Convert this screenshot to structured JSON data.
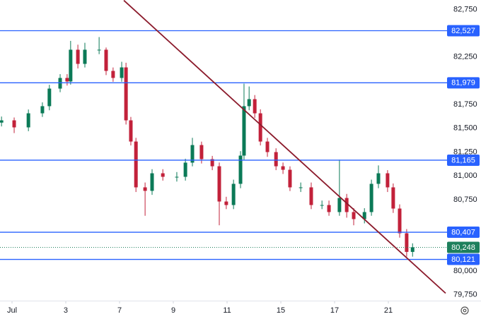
{
  "chart_data": {
    "type": "candlestick",
    "x": [
      -0.39,
      0.08,
      0.61,
      1.13,
      1.39,
      1.79,
      2.05,
      2.18,
      2.45,
      2.71,
      3.24,
      3.5,
      3.76,
      4.08,
      4.24,
      4.42,
      4.61,
      4.95,
      5.21,
      5.61,
      6.13,
      6.45,
      6.71,
      7.05,
      7.45,
      7.71,
      7.97,
      8.24,
      8.5,
      8.63,
      8.82,
      9.03,
      9.24,
      9.5,
      9.82,
      10.08,
      10.34,
      10.74,
      11.13,
      11.53,
      11.79,
      12.18,
      12.45,
      12.71,
      13.11,
      13.37,
      13.63,
      13.97,
      14.18,
      14.42,
      14.68,
      14.9
    ],
    "open": [
      81560,
      81584,
      81510,
      81658,
      81733,
      81918,
      82030,
      81993,
      82327,
      82178,
      82327,
      82327,
      82104,
      82030,
      82141,
      81584,
      81361,
      80879,
      80842,
      81027,
      80990,
      80990,
      81139,
      81324,
      81176,
      81101,
      80730,
      80693,
      80916,
      81213,
      81733,
      81807,
      81658,
      81361,
      81250,
      81101,
      81064,
      80879,
      80879,
      80693,
      80693,
      80619,
      80767,
      80619,
      80545,
      80619,
      80916,
      81027,
      80879,
      80656,
      80396,
      80200
    ],
    "high": [
      81624,
      81614,
      81698,
      81773,
      81958,
      82070,
      82070,
      82420,
      82380,
      82400,
      82460,
      82350,
      82140,
      82200,
      82190,
      81620,
      81400,
      80930,
      81070,
      81070,
      81040,
      81180,
      81400,
      81360,
      81210,
      81140,
      80780,
      80960,
      81260,
      81970,
      81940,
      81850,
      81700,
      81400,
      81290,
      81140,
      81100,
      80930,
      80930,
      80740,
      80740,
      81170,
      80810,
      80660,
      80660,
      80960,
      81110,
      81060,
      80920,
      80700,
      80440,
      80290
    ],
    "low": [
      81520,
      81450,
      81470,
      81620,
      81690,
      81880,
      81950,
      81960,
      82130,
      82140,
      82280,
      82060,
      81990,
      81990,
      81540,
      81320,
      80830,
      80580,
      80800,
      80950,
      80940,
      80950,
      81100,
      81130,
      81060,
      80480,
      80650,
      80650,
      80870,
      81170,
      81690,
      81610,
      81320,
      81200,
      81060,
      81020,
      80840,
      80830,
      80650,
      80650,
      80580,
      80580,
      80560,
      80480,
      80500,
      80580,
      80870,
      80830,
      80610,
      80350,
      80150,
      80150
    ],
    "close": [
      81584,
      81510,
      81658,
      81733,
      81918,
      82030,
      81993,
      82327,
      82178,
      82327,
      82327,
      82104,
      82030,
      82141,
      81584,
      81361,
      80879,
      80842,
      81027,
      80990,
      80990,
      81139,
      81324,
      81176,
      81101,
      80730,
      80693,
      80916,
      81213,
      81733,
      81807,
      81658,
      81361,
      81250,
      81101,
      81064,
      80879,
      80879,
      80693,
      80693,
      80619,
      80767,
      80619,
      80545,
      80619,
      80916,
      81027,
      80879,
      80656,
      80396,
      80200,
      80248
    ],
    "up_color": "#0b7a57",
    "down_color": "#c2213a",
    "xlim": [
      -0.447,
      16.13
    ],
    "ylim": [
      79650,
      82850
    ],
    "xticks": [
      {
        "value": 0,
        "label": "Jul"
      },
      {
        "value": 2,
        "label": "3"
      },
      {
        "value": 4,
        "label": "7"
      },
      {
        "value": 6,
        "label": "9"
      },
      {
        "value": 8,
        "label": "11"
      },
      {
        "value": 10,
        "label": "15"
      },
      {
        "value": 12,
        "label": "17"
      },
      {
        "value": 14,
        "label": "21"
      }
    ],
    "yticks": [
      {
        "value": 82750,
        "label": "82,750"
      },
      {
        "value": 82250,
        "label": "82,250"
      },
      {
        "value": 81750,
        "label": "81,750"
      },
      {
        "value": 81500,
        "label": "81,500"
      },
      {
        "value": 81250,
        "label": "81,250"
      },
      {
        "value": 81000,
        "label": "81,000"
      },
      {
        "value": 80750,
        "label": "80,750"
      },
      {
        "value": 80000,
        "label": "80,000"
      },
      {
        "value": 79750,
        "label": "79,750"
      }
    ],
    "levels": [
      {
        "value": 82527,
        "label": "82,527"
      },
      {
        "value": 81979,
        "label": "81,979"
      },
      {
        "value": 81165,
        "label": "81,165"
      },
      {
        "value": 80407,
        "label": "80,407"
      },
      {
        "value": 80121,
        "label": "80,121"
      }
    ],
    "level_color": "#2962ff",
    "last_price": {
      "value": 80248,
      "label": "80,248"
    },
    "last_price_color": "#1e7f5c",
    "trendline": {
      "x": [
        4.16,
        16.13
      ],
      "y": [
        82846,
        79765
      ],
      "color": "#8b1a2b"
    },
    "grid": false
  }
}
